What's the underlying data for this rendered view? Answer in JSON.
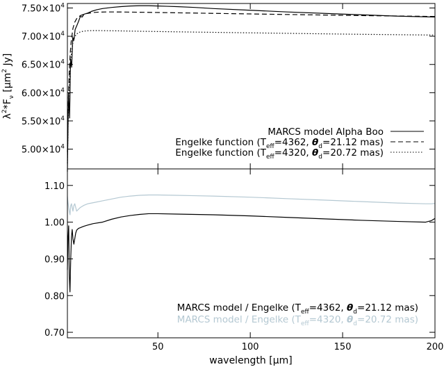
{
  "chart_data": [
    {
      "type": "line",
      "ylabel_parts": {
        "pre": "λ",
        "sup1": "2",
        "mid": "*F",
        "sub1": "ν",
        "post": " [μm",
        "sup2": "2",
        "end": " Jy]"
      },
      "xlim": [
        1,
        200
      ],
      "ylim": [
        46500,
        75800
      ],
      "yticks": [
        {
          "value": 50000,
          "mant": "5.00×10",
          "exp": "4"
        },
        {
          "value": 55000,
          "mant": "5.50×10",
          "exp": "4"
        },
        {
          "value": 60000,
          "mant": "6.00×10",
          "exp": "4"
        },
        {
          "value": 65000,
          "mant": "6.50×10",
          "exp": "4"
        },
        {
          "value": 70000,
          "mant": "7.00×10",
          "exp": "4"
        },
        {
          "value": 75000,
          "mant": "7.50×10",
          "exp": "4"
        }
      ],
      "series": [
        {
          "legend_parts": {
            "text": "MARCS model Alpha Boo"
          },
          "style": "solid",
          "color": "#000000",
          "x": [
            1,
            1.6,
            2.2,
            2.7,
            3.3,
            3.9,
            4.5,
            5.2,
            6,
            7,
            8,
            9,
            10,
            12,
            14,
            17,
            20,
            25,
            30,
            35,
            40,
            45,
            50,
            55,
            60,
            70,
            80,
            100,
            120,
            140,
            160,
            180,
            200
          ],
          "y": [
            46000,
            60000,
            55500,
            66000,
            64500,
            69800,
            69300,
            71200,
            71800,
            72600,
            73500,
            73400,
            73900,
            74100,
            74400,
            74700,
            74900,
            75100,
            75250,
            75350,
            75400,
            75400,
            75350,
            75300,
            75250,
            75100,
            74900,
            74600,
            74300,
            74050,
            73800,
            73550,
            73400
          ]
        },
        {
          "legend_parts": {
            "pre": "Engelke function (T",
            "sub": "eff",
            "mid": "=4362, ",
            "theta": "θ",
            "sub2": "d",
            "post": "=21.12 mas)"
          },
          "style": "dashed",
          "color": "#000000",
          "x": [
            1,
            1.5,
            2,
            2.5,
            3,
            4,
            5,
            6,
            8,
            10,
            12,
            15,
            18,
            22,
            26,
            30,
            40,
            60,
            100,
            150,
            200
          ],
          "y": [
            49500,
            58500,
            63500,
            66800,
            68900,
            71400,
            72500,
            73100,
            73650,
            73900,
            74050,
            74200,
            74270,
            74300,
            74300,
            74290,
            74250,
            74150,
            73950,
            73700,
            73500
          ]
        },
        {
          "legend_parts": {
            "pre": "Engelke function (T",
            "sub": "eff",
            "mid": "=4320, ",
            "theta": "θ",
            "sub2": "d",
            "post": "=20.72 mas)"
          },
          "style": "dotted",
          "color": "#000000",
          "x": [
            1,
            1.5,
            2,
            2.5,
            3,
            4,
            5,
            6,
            8,
            10,
            12,
            15,
            18,
            22,
            26,
            30,
            40,
            60,
            100,
            150,
            200
          ],
          "y": [
            47500,
            56500,
            61300,
            64500,
            66500,
            68900,
            69900,
            70400,
            70780,
            70900,
            70970,
            71000,
            71000,
            70980,
            70960,
            70940,
            70880,
            70780,
            70600,
            70380,
            70200
          ]
        }
      ]
    },
    {
      "type": "line",
      "xlabel_parts": {
        "pre": "wavelength [",
        "mu": "μ",
        "post": "m]"
      },
      "xlim": [
        1,
        200
      ],
      "ylim": [
        0.685,
        1.145
      ],
      "xticks": [
        {
          "value": 50,
          "label": "50"
        },
        {
          "value": 100,
          "label": "100"
        },
        {
          "value": 150,
          "label": "150"
        },
        {
          "value": 200,
          "label": "200"
        }
      ],
      "yticks": [
        {
          "value": 0.7,
          "label": "0.70"
        },
        {
          "value": 0.8,
          "label": "0.80"
        },
        {
          "value": 0.9,
          "label": "0.90"
        },
        {
          "value": 1.0,
          "label": "1.00"
        },
        {
          "value": 1.1,
          "label": "1.10"
        }
      ],
      "series": [
        {
          "legend_parts": {
            "pre": "MARCS model / Engelke (T",
            "sub": "eff",
            "mid": "=4362, ",
            "theta": "θ",
            "sub2": "d",
            "post": "=21.12 mas)"
          },
          "style": "solid",
          "color": "#000000",
          "x": [
            1,
            1.3,
            1.7,
            2,
            2.4,
            2.8,
            3.2,
            3.6,
            4,
            4.5,
            5,
            5.5,
            6,
            7,
            8,
            9,
            10,
            12,
            15,
            20,
            25,
            30,
            35,
            40,
            45,
            50,
            60,
            70,
            80,
            100,
            120,
            140,
            160,
            180,
            195,
            198,
            200
          ],
          "y": [
            0.87,
            0.95,
            0.99,
            0.86,
            0.81,
            0.9,
            0.96,
            0.98,
            0.955,
            0.94,
            0.955,
            0.97,
            0.978,
            0.983,
            0.985,
            0.987,
            0.989,
            0.992,
            0.996,
            1.0,
            1.008,
            1.014,
            1.018,
            1.021,
            1.023,
            1.023,
            1.022,
            1.021,
            1.02,
            1.017,
            1.013,
            1.009,
            1.005,
            1.002,
            1.0,
            1.004,
            1.01
          ]
        },
        {
          "legend_parts": {
            "pre": "MARCS model / Engelke (T",
            "sub": "eff",
            "mid": "=4320, ",
            "theta": "θ",
            "sub2": "d",
            "post": "=20.72 mas)"
          },
          "style": "solid",
          "color": "#b4c8d2",
          "x": [
            1,
            1.3,
            1.7,
            2,
            2.4,
            2.8,
            3.2,
            3.6,
            4,
            4.5,
            5,
            5.5,
            6,
            7,
            8,
            9,
            10,
            12,
            15,
            20,
            25,
            30,
            35,
            40,
            45,
            50,
            60,
            70,
            80,
            100,
            120,
            140,
            160,
            180,
            195,
            198,
            200
          ],
          "y": [
            1.07,
            1.055,
            1.04,
            1.03,
            1.02,
            1.045,
            1.05,
            1.04,
            1.03,
            1.045,
            1.05,
            1.04,
            1.03,
            1.035,
            1.04,
            1.043,
            1.046,
            1.05,
            1.053,
            1.058,
            1.063,
            1.068,
            1.071,
            1.073,
            1.074,
            1.074,
            1.073,
            1.072,
            1.071,
            1.068,
            1.064,
            1.06,
            1.056,
            1.052,
            1.05,
            1.05,
            1.051
          ]
        }
      ]
    }
  ]
}
